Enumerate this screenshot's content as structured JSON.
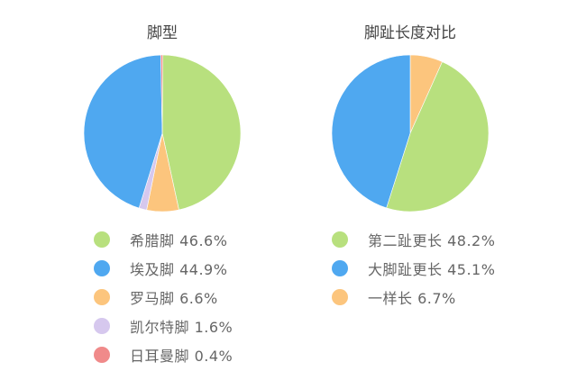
{
  "chart_data": [
    {
      "type": "pie",
      "title": "脚型",
      "categories": [
        "希腊脚",
        "埃及脚",
        "罗马脚",
        "凯尔特脚",
        "日耳曼脚"
      ],
      "values": [
        46.6,
        44.9,
        6.6,
        1.6,
        0.4
      ],
      "colors": [
        "#b8e07e",
        "#4fa8f0",
        "#fcc57d",
        "#d6c8ee",
        "#f08a8a"
      ],
      "slice_order_clockwise_from_top": [
        "希腊脚",
        "罗马脚",
        "凯尔特脚",
        "埃及脚",
        "日耳曼脚"
      ],
      "legend": [
        {
          "label": "希腊脚 46.6%",
          "color": "#b8e07e"
        },
        {
          "label": "埃及脚 44.9%",
          "color": "#4fa8f0"
        },
        {
          "label": "罗马脚 6.6%",
          "color": "#fcc57d"
        },
        {
          "label": "凯尔特脚 1.6%",
          "color": "#d6c8ee"
        },
        {
          "label": "日耳曼脚 0.4%",
          "color": "#f08a8a"
        }
      ],
      "legend_position": "bottom"
    },
    {
      "type": "pie",
      "title": "脚趾长度对比",
      "categories": [
        "第二趾更长",
        "大脚趾更长",
        "一样长"
      ],
      "values": [
        48.2,
        45.1,
        6.7
      ],
      "colors": [
        "#b8e07e",
        "#4fa8f0",
        "#fcc57d"
      ],
      "slice_order_clockwise_from_top": [
        "一样长",
        "第二趾更长",
        "大脚趾更长"
      ],
      "legend": [
        {
          "label": "第二趾更长 48.2%",
          "color": "#b8e07e"
        },
        {
          "label": "大脚趾更长 45.1%",
          "color": "#4fa8f0"
        },
        {
          "label": "一样长 6.7%",
          "color": "#fcc57d"
        }
      ],
      "legend_position": "bottom"
    }
  ]
}
